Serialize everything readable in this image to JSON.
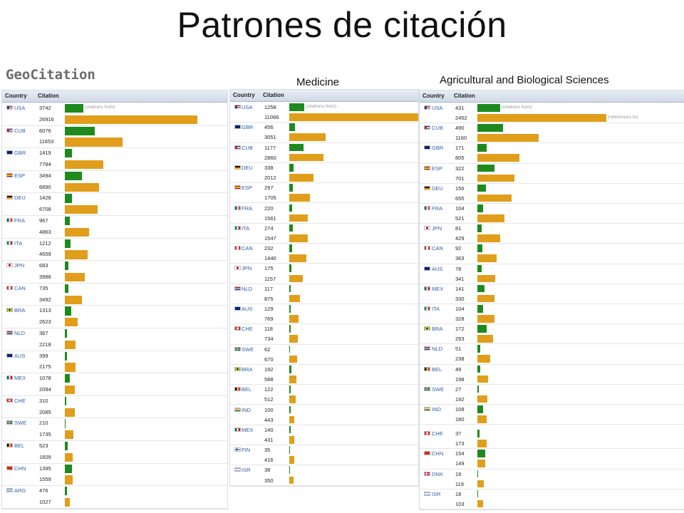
{
  "slide": {
    "title": "Patrones de citación",
    "logo": "GeoCitation"
  },
  "table_headers": {
    "country": "Country",
    "citation": "Citation"
  },
  "bar_notes": {
    "from": "(citations from)",
    "to": "(references to)"
  },
  "colors": {
    "citations_from": "#1e8a1e",
    "references_to": "#e09e1a"
  },
  "chart_data": [
    {
      "type": "bar",
      "title": "",
      "orientation": "horizontal",
      "series_names": [
        "citations from",
        "references to"
      ],
      "rows": [
        {
          "code": "USA",
          "from": 3742,
          "to": 26916
        },
        {
          "code": "CUB",
          "from": 6076,
          "to": 11653
        },
        {
          "code": "GBR",
          "from": 1419,
          "to": 7784
        },
        {
          "code": "ESP",
          "from": 3494,
          "to": 6890
        },
        {
          "code": "DEU",
          "from": 1428,
          "to": 6708
        },
        {
          "code": "FRA",
          "from": 967,
          "to": 4863
        },
        {
          "code": "ITA",
          "from": 1212,
          "to": 4659
        },
        {
          "code": "JPN",
          "from": 683,
          "to": 3988
        },
        {
          "code": "CAN",
          "from": 735,
          "to": 3492
        },
        {
          "code": "BRA",
          "from": 1313,
          "to": 2623
        },
        {
          "code": "NLD",
          "from": 367,
          "to": 2218
        },
        {
          "code": "AUS",
          "from": 399,
          "to": 2175
        },
        {
          "code": "MEX",
          "from": 1078,
          "to": 2094
        },
        {
          "code": "CHE",
          "from": 310,
          "to": 2085
        },
        {
          "code": "SWE",
          "from": 210,
          "to": 1735
        },
        {
          "code": "BEL",
          "from": 523,
          "to": 1609
        },
        {
          "code": "CHN",
          "from": 1395,
          "to": 1559
        },
        {
          "code": "ARG",
          "from": 476,
          "to": 1027
        }
      ]
    },
    {
      "type": "bar",
      "title": "Medicine",
      "orientation": "horizontal",
      "series_names": [
        "citations from",
        "references to"
      ],
      "rows": [
        {
          "code": "USA",
          "from": 1258,
          "to": 11066
        },
        {
          "code": "GBR",
          "from": 456,
          "to": 3051
        },
        {
          "code": "CUB",
          "from": 1177,
          "to": 2860
        },
        {
          "code": "DEU",
          "from": 338,
          "to": 2012
        },
        {
          "code": "ESP",
          "from": 297,
          "to": 1705
        },
        {
          "code": "FRA",
          "from": 220,
          "to": 1561
        },
        {
          "code": "ITA",
          "from": 274,
          "to": 1547
        },
        {
          "code": "CAN",
          "from": 232,
          "to": 1440
        },
        {
          "code": "JPN",
          "from": 175,
          "to": 1157
        },
        {
          "code": "NLD",
          "from": 117,
          "to": 875
        },
        {
          "code": "AUS",
          "from": 129,
          "to": 769
        },
        {
          "code": "CHE",
          "from": 118,
          "to": 734
        },
        {
          "code": "SWE",
          "from": 62,
          "to": 670
        },
        {
          "code": "BRA",
          "from": 192,
          "to": 588
        },
        {
          "code": "BEL",
          "from": 122,
          "to": 512
        },
        {
          "code": "IND",
          "from": 100,
          "to": 443
        },
        {
          "code": "MEX",
          "from": 140,
          "to": 431
        },
        {
          "code": "FIN",
          "from": 35,
          "to": 416
        },
        {
          "code": "ISR",
          "from": 38,
          "to": 350
        }
      ]
    },
    {
      "type": "bar",
      "title": "Agricultural and Biological Sciences",
      "orientation": "horizontal",
      "series_names": [
        "citations from",
        "references to"
      ],
      "rows": [
        {
          "code": "USA",
          "from": 431,
          "to": 2452
        },
        {
          "code": "CUB",
          "from": 490,
          "to": 1160
        },
        {
          "code": "GBR",
          "from": 171,
          "to": 805
        },
        {
          "code": "ESP",
          "from": 322,
          "to": 701
        },
        {
          "code": "DEU",
          "from": 156,
          "to": 655
        },
        {
          "code": "FRA",
          "from": 104,
          "to": 521
        },
        {
          "code": "JPN",
          "from": 81,
          "to": 429
        },
        {
          "code": "CAN",
          "from": 92,
          "to": 363
        },
        {
          "code": "AUS",
          "from": 78,
          "to": 341
        },
        {
          "code": "MEX",
          "from": 141,
          "to": 330
        },
        {
          "code": "ITA",
          "from": 104,
          "to": 328
        },
        {
          "code": "BRA",
          "from": 172,
          "to": 293
        },
        {
          "code": "NLD",
          "from": 51,
          "to": 238
        },
        {
          "code": "BEL",
          "from": 49,
          "to": 198
        },
        {
          "code": "SWE",
          "from": 27,
          "to": 192
        },
        {
          "code": "IND",
          "from": 108,
          "to": 180
        },
        {
          "code": "CHE",
          "from": 37,
          "to": 173
        },
        {
          "code": "CHN",
          "from": 154,
          "to": 149
        },
        {
          "code": "DNK",
          "from": 19,
          "to": 119
        },
        {
          "code": "ISR",
          "from": 18,
          "to": 103
        }
      ]
    }
  ]
}
